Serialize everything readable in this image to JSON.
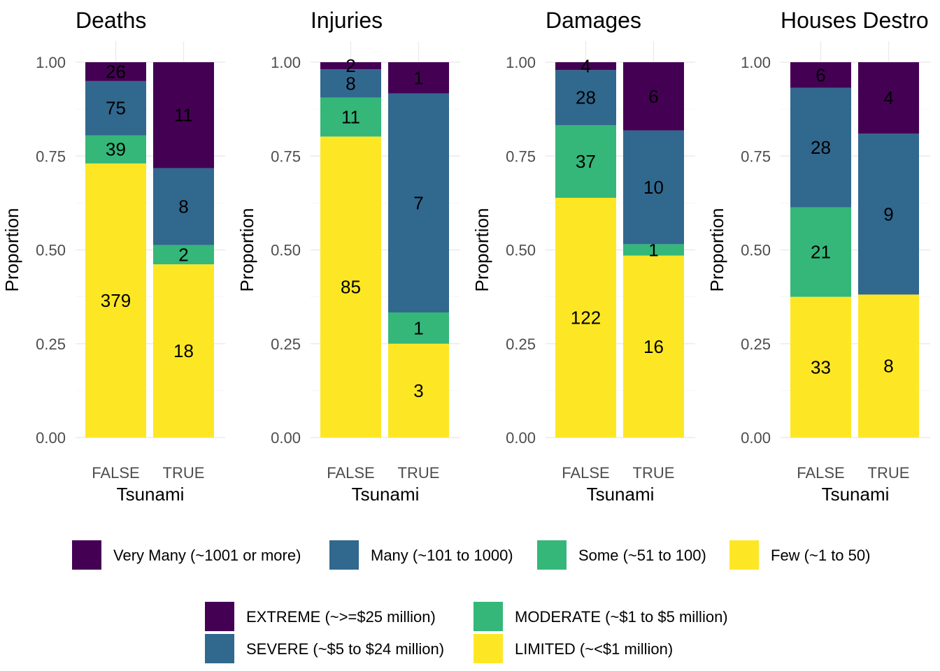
{
  "colors": {
    "very_many": "#440154",
    "many": "#31688e",
    "some": "#35b779",
    "few": "#fde725"
  },
  "chart_data": [
    {
      "type": "bar",
      "stacked": true,
      "normalized": true,
      "title": "Deaths",
      "xlabel": "Tsunami",
      "ylabel": "Proportion",
      "ylim": [
        0,
        1
      ],
      "yticks": [
        "0.00",
        "0.25",
        "0.50",
        "0.75",
        "1.00"
      ],
      "categories": [
        "FALSE",
        "TRUE"
      ],
      "series": [
        {
          "name": "Very Many (~1001 or more)",
          "values": [
            26,
            11
          ]
        },
        {
          "name": "Many (~101 to 1000)",
          "values": [
            75,
            8
          ]
        },
        {
          "name": "Some (~51 to 100)",
          "values": [
            39,
            2
          ]
        },
        {
          "name": "Few (~1 to 50)",
          "values": [
            379,
            18
          ]
        }
      ]
    },
    {
      "type": "bar",
      "stacked": true,
      "normalized": true,
      "title": "Injuries",
      "xlabel": "Tsunami",
      "ylabel": "Proportion",
      "ylim": [
        0,
        1
      ],
      "yticks": [
        "0.00",
        "0.25",
        "0.50",
        "0.75",
        "1.00"
      ],
      "categories": [
        "FALSE",
        "TRUE"
      ],
      "series": [
        {
          "name": "Very Many (~1001 or more)",
          "values": [
            2,
            1
          ]
        },
        {
          "name": "Many (~101 to 1000)",
          "values": [
            8,
            7
          ]
        },
        {
          "name": "Some (~51 to 100)",
          "values": [
            11,
            1
          ]
        },
        {
          "name": "Few (~1 to 50)",
          "values": [
            85,
            3
          ]
        }
      ]
    },
    {
      "type": "bar",
      "stacked": true,
      "normalized": true,
      "title": "Damages",
      "xlabel": "Tsunami",
      "ylabel": "Proportion",
      "ylim": [
        0,
        1
      ],
      "yticks": [
        "0.00",
        "0.25",
        "0.50",
        "0.75",
        "1.00"
      ],
      "categories": [
        "FALSE",
        "TRUE"
      ],
      "series": [
        {
          "name": "EXTREME (~>=$25 million)",
          "values": [
            4,
            6
          ]
        },
        {
          "name": "SEVERE (~$5 to $24 million)",
          "values": [
            28,
            10
          ]
        },
        {
          "name": "MODERATE (~$1 to $5 million)",
          "values": [
            37,
            1
          ]
        },
        {
          "name": "LIMITED (~<$1 million)",
          "values": [
            122,
            16
          ]
        }
      ]
    },
    {
      "type": "bar",
      "stacked": true,
      "normalized": true,
      "title": "Houses Destro",
      "xlabel": "Tsunami",
      "ylabel": "Proportion",
      "ylim": [
        0,
        1
      ],
      "yticks": [
        "0.00",
        "0.25",
        "0.50",
        "0.75",
        "1.00"
      ],
      "categories": [
        "FALSE",
        "TRUE"
      ],
      "series": [
        {
          "name": "Very Many (~1001 or more)",
          "values": [
            6,
            4
          ]
        },
        {
          "name": "Many (~101 to 1000)",
          "values": [
            28,
            9
          ]
        },
        {
          "name": "Some (~51 to 100)",
          "values": [
            21,
            0
          ]
        },
        {
          "name": "Few (~1 to 50)",
          "values": [
            33,
            8
          ]
        }
      ]
    }
  ],
  "legends": [
    {
      "layout": "row",
      "items": [
        {
          "label": "Very Many (~1001 or more)",
          "color": "#440154"
        },
        {
          "label": "Many (~101 to 1000)",
          "color": "#31688e"
        },
        {
          "label": "Some (~51 to 100)",
          "color": "#35b779"
        },
        {
          "label": "Few (~1 to 50)",
          "color": "#fde725"
        }
      ]
    },
    {
      "layout": "grid-2x2",
      "items": [
        {
          "label": "EXTREME (~>=$25 million)",
          "color": "#440154"
        },
        {
          "label": "SEVERE (~$5 to $24 million)",
          "color": "#31688e"
        },
        {
          "label": "MODERATE (~$1 to $5 million)",
          "color": "#35b779"
        },
        {
          "label": "LIMITED (~<$1 million)",
          "color": "#fde725"
        }
      ]
    }
  ]
}
